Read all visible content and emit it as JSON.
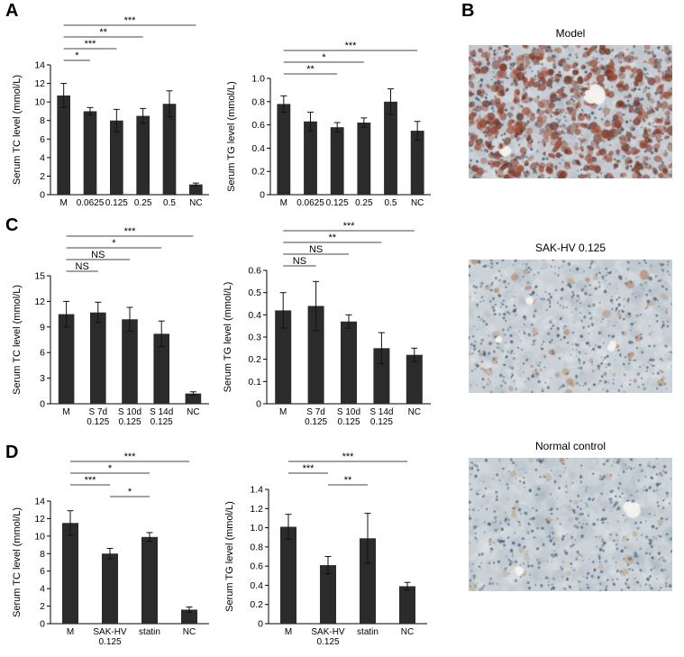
{
  "panels": {
    "A": "A",
    "B": "B",
    "C": "C",
    "D": "D"
  },
  "histology": {
    "items": [
      {
        "title": "Model",
        "base": "#c6ccd1",
        "nuclei": "#41576e",
        "stain_colors": [
          "#8e4130",
          "#a35138",
          "#6e2f20"
        ]
      },
      {
        "title": "SAK-HV 0.125",
        "base": "#cbd2d7",
        "nuclei": "#4a5f75",
        "stain_colors": [
          "#b98d6f"
        ]
      },
      {
        "title": "Normal control",
        "base": "#c9d1d6",
        "nuclei": "#4a617a",
        "stain_colors": [
          "#c2a98e"
        ]
      }
    ]
  },
  "chart_data": [
    {
      "panel": "A",
      "type": "bar",
      "ylabel": "Serum TC level (mmol/L)",
      "ylim": [
        0,
        14
      ],
      "yticks": [
        "0",
        "2",
        "4",
        "6",
        "8",
        "10",
        "12",
        "14"
      ],
      "categories": [
        "M",
        "0.0625",
        "0.125",
        "0.25",
        "0.5",
        "NC"
      ],
      "values": [
        10.7,
        9.0,
        8.0,
        8.5,
        9.8,
        1.1
      ],
      "errors": [
        1.3,
        0.4,
        1.2,
        0.8,
        1.4,
        0.15
      ],
      "bar_color": "#2b2b2b",
      "significance_brackets": [
        {
          "between": [
            "M",
            "0.0625"
          ],
          "label": "*"
        },
        {
          "between": [
            "M",
            "0.125"
          ],
          "label": "***"
        },
        {
          "between": [
            "M",
            "0.25"
          ],
          "label": "**"
        },
        {
          "between": [
            "M",
            "NC"
          ],
          "label": "***"
        }
      ]
    },
    {
      "panel": "A",
      "type": "bar",
      "ylabel": "Serum TG level (mmol/L)",
      "ylim": [
        0,
        1.0
      ],
      "yticks": [
        "0",
        "0.2",
        "0.4",
        "0.6",
        "0.8",
        "1.0"
      ],
      "categories": [
        "M",
        "0.0625",
        "0.125",
        "0.25",
        "0.5",
        "NC"
      ],
      "values": [
        0.78,
        0.63,
        0.58,
        0.62,
        0.8,
        0.55
      ],
      "errors": [
        0.07,
        0.08,
        0.04,
        0.04,
        0.11,
        0.08
      ],
      "bar_color": "#2b2b2b",
      "significance_brackets": [
        {
          "between": [
            "M",
            "0.125"
          ],
          "label": "**"
        },
        {
          "between": [
            "M",
            "0.25"
          ],
          "label": "*"
        },
        {
          "between": [
            "M",
            "NC"
          ],
          "label": "***"
        }
      ]
    },
    {
      "panel": "C",
      "type": "bar",
      "ylabel": "Serum TC level (mmol/L)",
      "ylim": [
        0,
        15
      ],
      "yticks": [
        "0",
        "3",
        "6",
        "9",
        "12",
        "15"
      ],
      "categories": [
        "M",
        "S 7d\n0.125",
        "S 10d\n0.125",
        "S 14d\n0.125",
        "NC"
      ],
      "values": [
        10.5,
        10.7,
        9.9,
        8.2,
        1.2
      ],
      "errors": [
        1.5,
        1.2,
        1.4,
        1.5,
        0.2
      ],
      "bar_color": "#2b2b2b",
      "significance_brackets": [
        {
          "between": [
            "M",
            "S 7d\n0.125"
          ],
          "label": "NS"
        },
        {
          "between": [
            "M",
            "S 10d\n0.125"
          ],
          "label": "NS"
        },
        {
          "between": [
            "M",
            "S 14d\n0.125"
          ],
          "label": "*"
        },
        {
          "between": [
            "M",
            "NC"
          ],
          "label": "***"
        }
      ]
    },
    {
      "panel": "C",
      "type": "bar",
      "ylabel": "Serum TG level (mmol/L)",
      "ylim": [
        0,
        0.6
      ],
      "yticks": [
        "0",
        "0.1",
        "0.2",
        "0.3",
        "0.4",
        "0.5",
        "0.6"
      ],
      "categories": [
        "M",
        "S 7d\n0.125",
        "S 10d\n0.125",
        "S 14d\n0.125",
        "NC"
      ],
      "values": [
        0.42,
        0.44,
        0.37,
        0.25,
        0.22
      ],
      "errors": [
        0.08,
        0.11,
        0.03,
        0.07,
        0.03
      ],
      "bar_color": "#2b2b2b",
      "significance_brackets": [
        {
          "between": [
            "M",
            "S 7d\n0.125"
          ],
          "label": "NS"
        },
        {
          "between": [
            "M",
            "S 10d\n0.125"
          ],
          "label": "NS"
        },
        {
          "between": [
            "M",
            "S 14d\n0.125"
          ],
          "label": "**"
        },
        {
          "between": [
            "M",
            "NC"
          ],
          "label": "***"
        }
      ]
    },
    {
      "panel": "D",
      "type": "bar",
      "ylabel": "Serum TC level (mmol/L)",
      "ylim": [
        0,
        14
      ],
      "yticks": [
        "0",
        "2",
        "4",
        "6",
        "8",
        "10",
        "12",
        "14"
      ],
      "categories": [
        "M",
        "SAK-HV\n0.125",
        "statin",
        "NC"
      ],
      "values": [
        11.5,
        8.0,
        9.9,
        1.6
      ],
      "errors": [
        1.4,
        0.6,
        0.5,
        0.3
      ],
      "bar_color": "#2b2b2b",
      "significance_brackets": [
        {
          "between": [
            "SAK-HV\n0.125",
            "statin"
          ],
          "label": "*"
        },
        {
          "between": [
            "M",
            "SAK-HV\n0.125"
          ],
          "label": "***"
        },
        {
          "between": [
            "M",
            "statin"
          ],
          "label": "*"
        },
        {
          "between": [
            "M",
            "NC"
          ],
          "label": "***"
        }
      ]
    },
    {
      "panel": "D",
      "type": "bar",
      "ylabel": "Serum TG level (mmol/L)",
      "ylim": [
        0,
        1.4
      ],
      "yticks": [
        "0",
        "0.2",
        "0.4",
        "0.6",
        "0.8",
        "1.0",
        "1.2",
        "1.4"
      ],
      "categories": [
        "M",
        "SAK-HV\n0.125",
        "statin",
        "NC"
      ],
      "values": [
        1.01,
        0.61,
        0.89,
        0.39
      ],
      "errors": [
        0.13,
        0.09,
        0.26,
        0.04
      ],
      "bar_color": "#2b2b2b",
      "significance_brackets": [
        {
          "between": [
            "SAK-HV\n0.125",
            "statin"
          ],
          "label": "**"
        },
        {
          "between": [
            "M",
            "SAK-HV\n0.125"
          ],
          "label": "***"
        },
        {
          "between": [
            "M",
            "NC"
          ],
          "label": "***"
        }
      ]
    }
  ]
}
